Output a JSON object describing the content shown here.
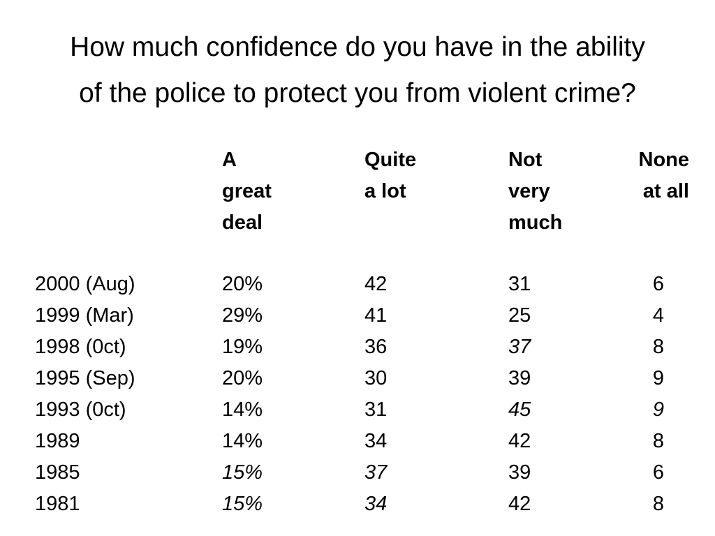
{
  "title": {
    "line1": "How much confidence do you have in the ability",
    "line2": "of the police to protect you from violent crime?"
  },
  "headers": {
    "a": [
      "A",
      "great",
      "deal"
    ],
    "b": [
      "Quite",
      "a lot"
    ],
    "c": [
      "Not",
      "very",
      "much"
    ],
    "d": [
      "None",
      "at all"
    ]
  },
  "rows": [
    {
      "year": "2000 (Aug)",
      "a": "20%",
      "b": "42",
      "c": "31",
      "d": "6"
    },
    {
      "year": "1999 (Mar)",
      "a": "29%",
      "b": "41",
      "c": "25",
      "d": "4"
    },
    {
      "year": "1998 (0ct)",
      "a": "19%",
      "b": "36",
      "c": "37",
      "d": "8"
    },
    {
      "year": "1995 (Sep)",
      "a": "20%",
      "b": "30",
      "c": "39",
      "d": "9"
    },
    {
      "year": "1993 (0ct)",
      "a": "14%",
      "b": "31",
      "c": "45",
      "d": "9"
    },
    {
      "year": "1989",
      "a": "14%",
      "b": "34",
      "c": "42",
      "d": "8"
    },
    {
      "year": "1985",
      "a": "15%",
      "b": "37",
      "c": "39",
      "d": "6"
    },
    {
      "year": "1981",
      "a": "15%",
      "b": "34",
      "c": "42",
      "d": "8"
    }
  ]
}
